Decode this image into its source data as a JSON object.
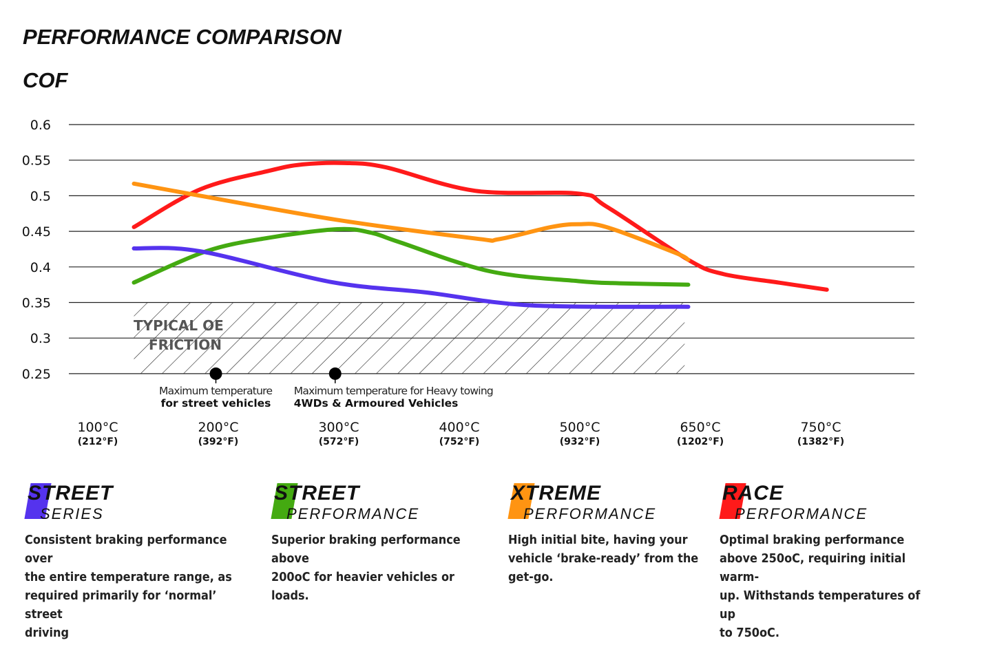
{
  "title": "PERFORMANCE COMPARISON",
  "subtitle": "COF",
  "chart_data": {
    "type": "line",
    "ylabel": "COF",
    "ylim": [
      0.25,
      0.6
    ],
    "yticks": [
      "0.6",
      "0.55",
      "0.5",
      "0.45",
      "0.4",
      "0.35",
      "0.3",
      "0.25"
    ],
    "grid": true,
    "categories": [
      {
        "c": "100°C",
        "f": "(212°F)"
      },
      {
        "c": "200°C",
        "f": "(392°F)"
      },
      {
        "c": "300°C",
        "f": "(572°F)"
      },
      {
        "c": "400°C",
        "f": "(752°F)"
      },
      {
        "c": "500°C",
        "f": "(932°F)"
      },
      {
        "c": "650°C",
        "f": "(1202°F)"
      },
      {
        "c": "750°C",
        "f": "(1382°F)"
      }
    ],
    "series": [
      {
        "name": "Race Performance",
        "color": "#ff1a1a",
        "points": [
          [
            0.3,
            0.456
          ],
          [
            0.85,
            0.509
          ],
          [
            1.42,
            0.535
          ],
          [
            1.7,
            0.544
          ],
          [
            2.05,
            0.546
          ],
          [
            2.39,
            0.54
          ],
          [
            3.13,
            0.507
          ],
          [
            3.99,
            0.503
          ],
          [
            4.22,
            0.485
          ],
          [
            4.9,
            0.41
          ],
          [
            5.19,
            0.39
          ],
          [
            5.65,
            0.378
          ],
          [
            6.05,
            0.368
          ]
        ]
      },
      {
        "name": "Xtreme Performance",
        "color": "#ff9412",
        "points": [
          [
            0.3,
            0.517
          ],
          [
            0.85,
            0.5
          ],
          [
            1.99,
            0.466
          ],
          [
            3.13,
            0.44
          ],
          [
            3.33,
            0.439
          ],
          [
            3.76,
            0.456
          ],
          [
            3.99,
            0.46
          ],
          [
            4.22,
            0.456
          ],
          [
            4.79,
            0.42
          ],
          [
            4.9,
            0.41
          ]
        ]
      },
      {
        "name": "Street Performance",
        "color": "#44aa11",
        "points": [
          [
            0.3,
            0.378
          ],
          [
            0.9,
            0.422
          ],
          [
            1.42,
            0.441
          ],
          [
            1.99,
            0.453
          ],
          [
            2.27,
            0.448
          ],
          [
            2.5,
            0.435
          ],
          [
            3.25,
            0.394
          ],
          [
            3.99,
            0.38
          ],
          [
            4.33,
            0.377
          ],
          [
            4.9,
            0.375
          ]
        ]
      },
      {
        "name": "Street Series",
        "color": "#5533ee",
        "points": [
          [
            0.3,
            0.426
          ],
          [
            0.85,
            0.422
          ],
          [
            1.93,
            0.379
          ],
          [
            2.73,
            0.364
          ],
          [
            3.59,
            0.346
          ],
          [
            4.9,
            0.344
          ]
        ]
      }
    ],
    "hatch_region": {
      "label_line1": "TYPICAL OE",
      "label_line2": "FRICTION",
      "x": [
        0.3,
        4.87
      ],
      "y": [
        0.25,
        0.35
      ]
    },
    "annotations": [
      {
        "x": 0.98,
        "line1": "Maximum temperature",
        "line2": "for street vehicles"
      },
      {
        "x": 1.97,
        "line1": "Maximum temperature for Heavy towing",
        "line2": "4WDs & Armoured Vehicles"
      }
    ]
  },
  "legend": [
    {
      "big": "STREET",
      "small": "SERIES",
      "color": "#5533ee",
      "desc": [
        "Consistent braking performance over",
        "the entire temperature range, as",
        "required primarily for ‘normal’ street",
        "driving"
      ]
    },
    {
      "big": "STREET",
      "small": "PERFORMANCE",
      "color": "#44aa11",
      "desc": [
        "Superior braking performance above",
        "200oC for heavier vehicles or loads."
      ]
    },
    {
      "big": "XTREME",
      "small": "PERFORMANCE",
      "color": "#ff9412",
      "desc": [
        "High initial bite, having your",
        "vehicle ‘brake-ready’ from the",
        "get-go."
      ]
    },
    {
      "big": "RACE",
      "small": "PERFORMANCE",
      "color": "#ff1a1a",
      "desc": [
        "Optimal braking performance",
        "above 250oC, requiring initial warm-",
        "up. Withstands temperatures of up",
        "to 750oC."
      ]
    }
  ]
}
